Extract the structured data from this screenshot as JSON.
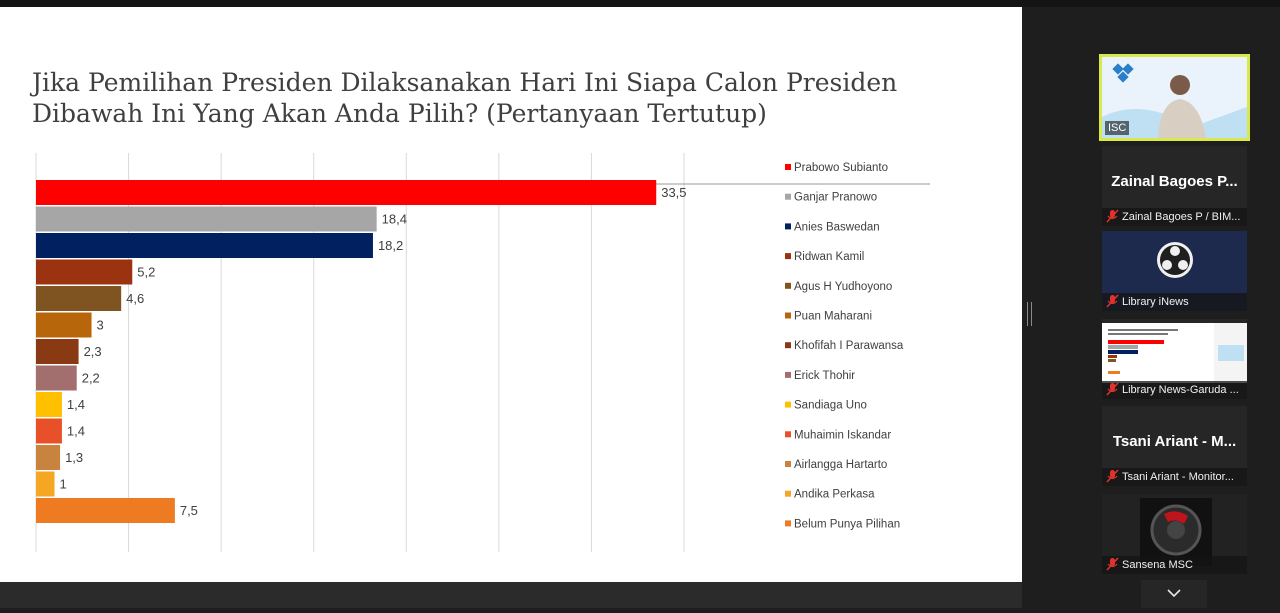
{
  "slide": {
    "title_line1": "Jika Pemilihan Presiden Dilaksanakan Hari Ini Siapa Calon Presiden",
    "title_line2": "Dibawah Ini Yang Akan Anda Pilih? (Pertanyaan Tertutup)"
  },
  "chart_data": {
    "type": "bar",
    "orientation": "horizontal",
    "title": "Jika Pemilihan Presiden Dilaksanakan Hari Ini Siapa Calon Presiden Dibawah Ini Yang Akan Anda Pilih? (Pertanyaan Tertutup)",
    "categories": [
      "Prabowo Subianto",
      "Ganjar Pranowo",
      "Anies Baswedan",
      "Ridwan Kamil",
      "Agus H Yudhoyono",
      "Puan Maharani",
      "Khofifah I Parawansa",
      "Erick Thohir",
      "Sandiaga Uno",
      "Muhaimin Iskandar",
      "Airlangga Hartarto",
      "Andika Perkasa",
      "Belum Punya Pilihan"
    ],
    "values": [
      33.5,
      18.4,
      18.2,
      5.2,
      4.6,
      3,
      2.3,
      2.2,
      1.4,
      1.4,
      1.3,
      1,
      7.5
    ],
    "value_labels": [
      "33,5",
      "18,4",
      "18,2",
      "5,2",
      "4,6",
      "3",
      "2,3",
      "2,2",
      "1,4",
      "1,4",
      "1,3",
      "1",
      "7,5"
    ],
    "colors": [
      "#ff0000",
      "#a6a6a6",
      "#002060",
      "#9b3310",
      "#7f5420",
      "#b8660c",
      "#8a3a12",
      "#a36e6e",
      "#ffc000",
      "#e8502a",
      "#c8843f",
      "#f5a623",
      "#ee7a22"
    ],
    "xlim": [
      0,
      48
    ],
    "grid": true,
    "legend": "right"
  },
  "sidebar": {
    "tiles": [
      {
        "kind": "video",
        "caption": "ISC"
      },
      {
        "kind": "name",
        "name": "Zainal Bagoes P...",
        "caption": "Zainal Bagoes P / BIM..."
      },
      {
        "kind": "logo",
        "caption": "Library iNews"
      },
      {
        "kind": "thumb",
        "caption": "Library News-Garuda ..."
      },
      {
        "kind": "name",
        "name": "Tsani Ariant - M...",
        "caption": "Tsani Ariant - Monitor..."
      },
      {
        "kind": "photo",
        "caption": "Sansena MSC"
      }
    ]
  },
  "colors": {
    "mic_muted": "#e0332b",
    "active_border": "#d9e84a"
  },
  "icons": {
    "mic": "mic-muted-icon",
    "scroll": "chevron-down-icon"
  }
}
